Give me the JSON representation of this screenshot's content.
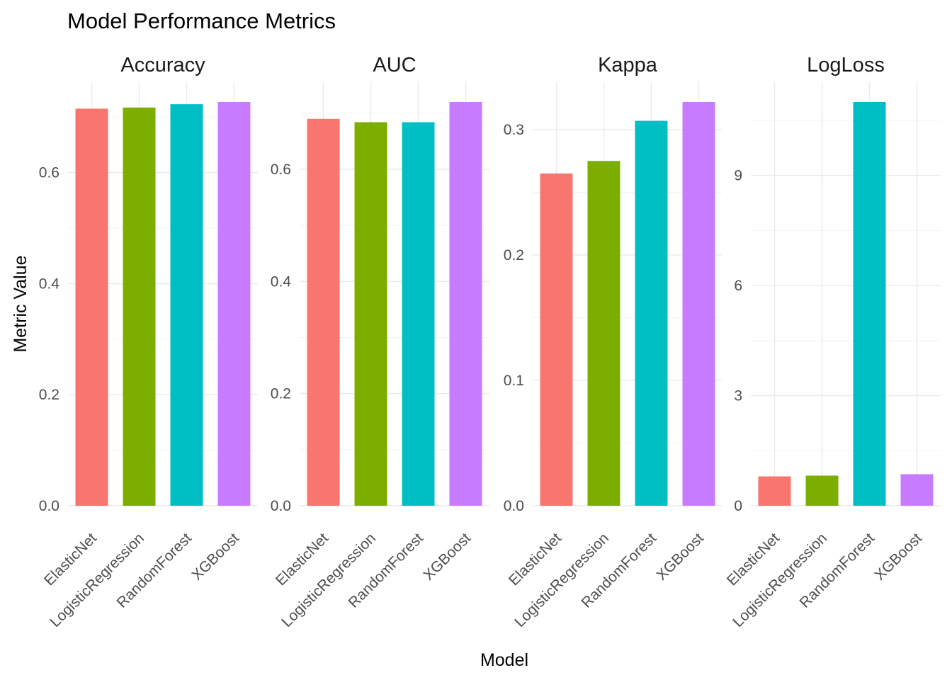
{
  "chart_data": {
    "type": "bar",
    "title": "Model Performance Metrics",
    "xlabel": "Model",
    "ylabel": "Metric Value",
    "categories": [
      "ElasticNet",
      "LogisticRegression",
      "RandomForest",
      "XGBoost"
    ],
    "colors": {
      "ElasticNet": "#F8766D",
      "LogisticRegression": "#7CAE00",
      "RandomForest": "#00BFC4",
      "XGBoost": "#C77CFF"
    },
    "grid": true,
    "legend": "none",
    "facets": [
      {
        "name": "Accuracy",
        "values": [
          0.715,
          0.717,
          0.723,
          0.727
        ],
        "ylim": [
          0,
          0.727
        ],
        "yticks": [
          0.0,
          0.2,
          0.4,
          0.6
        ],
        "ytick_labels": [
          "0.0",
          "0.2",
          "0.4",
          "0.6"
        ]
      },
      {
        "name": "AUC",
        "values": [
          0.69,
          0.684,
          0.684,
          0.72
        ],
        "ylim": [
          0,
          0.72
        ],
        "yticks": [
          0.0,
          0.2,
          0.4,
          0.6
        ],
        "ytick_labels": [
          "0.0",
          "0.2",
          "0.4",
          "0.6"
        ]
      },
      {
        "name": "Kappa",
        "values": [
          0.265,
          0.275,
          0.307,
          0.322
        ],
        "ylim": [
          0,
          0.322
        ],
        "yticks": [
          0.0,
          0.1,
          0.2,
          0.3
        ],
        "ytick_labels": [
          "0.0",
          "0.1",
          "0.2",
          "0.3"
        ]
      },
      {
        "name": "LogLoss",
        "values": [
          0.8,
          0.82,
          11.0,
          0.86
        ],
        "ylim": [
          0,
          11.0
        ],
        "yticks": [
          0,
          3,
          6,
          9
        ],
        "ytick_labels": [
          "0",
          "3",
          "6",
          "9"
        ]
      }
    ]
  }
}
